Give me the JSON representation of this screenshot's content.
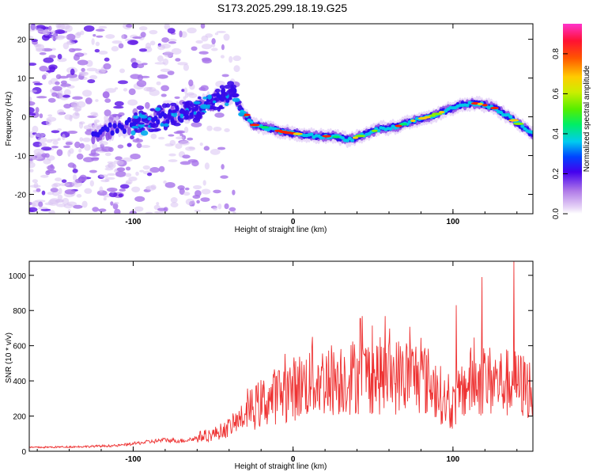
{
  "title": "S173.2025.299.18.19.G25",
  "chart_data": [
    {
      "type": "heatmap",
      "panel": "spectrogram",
      "xlabel": "Height of straight line (km)",
      "ylabel": "Frequency (Hz)",
      "xlim": [
        -165,
        150
      ],
      "ylim": [
        -25,
        24
      ],
      "xticks": [
        -100,
        0,
        100
      ],
      "yticks": [
        -20,
        -10,
        0,
        10,
        20
      ],
      "colorbar": {
        "label": "Normalized spectral amplitude",
        "range": [
          0,
          0.95
        ],
        "ticks": [
          0.0,
          0.2,
          0.4,
          0.6,
          0.8
        ]
      },
      "ridge_x": [
        -165,
        -140,
        -120,
        -100,
        -80,
        -60,
        -45,
        -37,
        -33,
        -25,
        -15,
        -5,
        5,
        15,
        25,
        35,
        45,
        55,
        65,
        75,
        85,
        95,
        105,
        115,
        125,
        135,
        145,
        150
      ],
      "ridge_freq": [
        -8,
        -6,
        -4,
        -2,
        0,
        2,
        5,
        6,
        2,
        -2,
        -3,
        -4,
        -4.5,
        -5,
        -5,
        -6,
        -4.5,
        -3,
        -2.5,
        -1,
        0,
        1.5,
        3,
        3.5,
        2.5,
        0,
        -3,
        -4.5
      ]
    },
    {
      "type": "line",
      "panel": "snr",
      "xlabel": "Height of straight line (km)",
      "ylabel": "SNR (10 * v/v)",
      "xlim": [
        -165,
        150
      ],
      "ylim": [
        0,
        1080
      ],
      "xticks": [
        -100,
        0,
        100
      ],
      "yticks": [
        0,
        200,
        400,
        600,
        800,
        1000
      ],
      "color": "#ee3333",
      "series": [
        {
          "name": "SNR",
          "x": [
            -165,
            -150,
            -130,
            -110,
            -95,
            -80,
            -70,
            -60,
            -50,
            -42,
            -35,
            -28,
            -20,
            -10,
            0,
            10,
            20,
            30,
            40,
            50,
            60,
            70,
            80,
            90,
            98,
            103,
            110,
            120,
            130,
            140,
            150
          ],
          "values": [
            20,
            22,
            25,
            30,
            45,
            60,
            55,
            70,
            85,
            110,
            150,
            190,
            230,
            270,
            300,
            330,
            340,
            355,
            360,
            365,
            355,
            365,
            360,
            300,
            200,
            250,
            330,
            340,
            330,
            320,
            300
          ]
        }
      ],
      "peaks": [
        {
          "x": 138,
          "y": 1080
        },
        {
          "x": 118,
          "y": 990
        },
        {
          "x": 42,
          "y": 755
        },
        {
          "x": 12,
          "y": 650
        },
        {
          "x": 102,
          "y": 830
        }
      ]
    }
  ]
}
